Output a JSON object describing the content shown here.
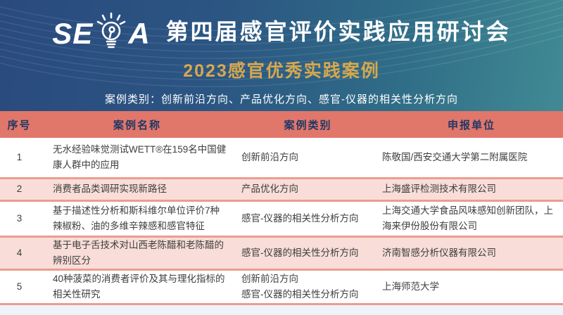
{
  "banner": {
    "logo_left": "SE",
    "logo_right": "A",
    "title": "第四届感官评价实践应用研讨会",
    "subtitle": "2023感官优秀实践案例",
    "category_line": "案例类别：创新前沿方向、产品优化方向、感官-仪器的相关性分析方向"
  },
  "colors": {
    "banner_left": "#2a4a7e",
    "banner_right": "#418a94",
    "subtitle_gold": "#d7a64b",
    "header_salmon": "#e1766b",
    "header_text_navy": "#1f3864",
    "row_pink": "#f8ddd8",
    "separator_salmon": "#ec9c90",
    "body_text": "#3e3e3e"
  },
  "table": {
    "headers": [
      "序号",
      "案例名称",
      "案例类别",
      "申报单位"
    ],
    "rows": [
      {
        "no": "1",
        "name": "无水经验味觉测试WETT®在159名中国健康人群中的应用",
        "categories": [
          "创新前沿方向"
        ],
        "unit": "陈敬国/西安交通大学第二附属医院"
      },
      {
        "no": "2",
        "name": "消费者品类调研实现新路径",
        "categories": [
          "产品优化方向"
        ],
        "unit": "上海盛评检测技术有限公司"
      },
      {
        "no": "3",
        "name": "基于描述性分析和斯科维尔单位评价7种辣椒粉、油的多维辛辣感和感官特征",
        "categories": [
          "感官-仪器的相关性分析方向"
        ],
        "unit": "上海交通大学食品风味感知创新团队，上海来伊份股份有限公司"
      },
      {
        "no": "4",
        "name": "基于电子舌技术对山西老陈醋和老陈醋的辨别区分",
        "categories": [
          "感官-仪器的相关性分析方向"
        ],
        "unit": "济南智感分析仪器有限公司"
      },
      {
        "no": "5",
        "name": "40种菠菜的消费者评价及其与理化指标的相关性研究",
        "categories": [
          "创新前沿方向",
          "感官-仪器的相关性分析方向"
        ],
        "unit": "上海师范大学"
      }
    ]
  }
}
